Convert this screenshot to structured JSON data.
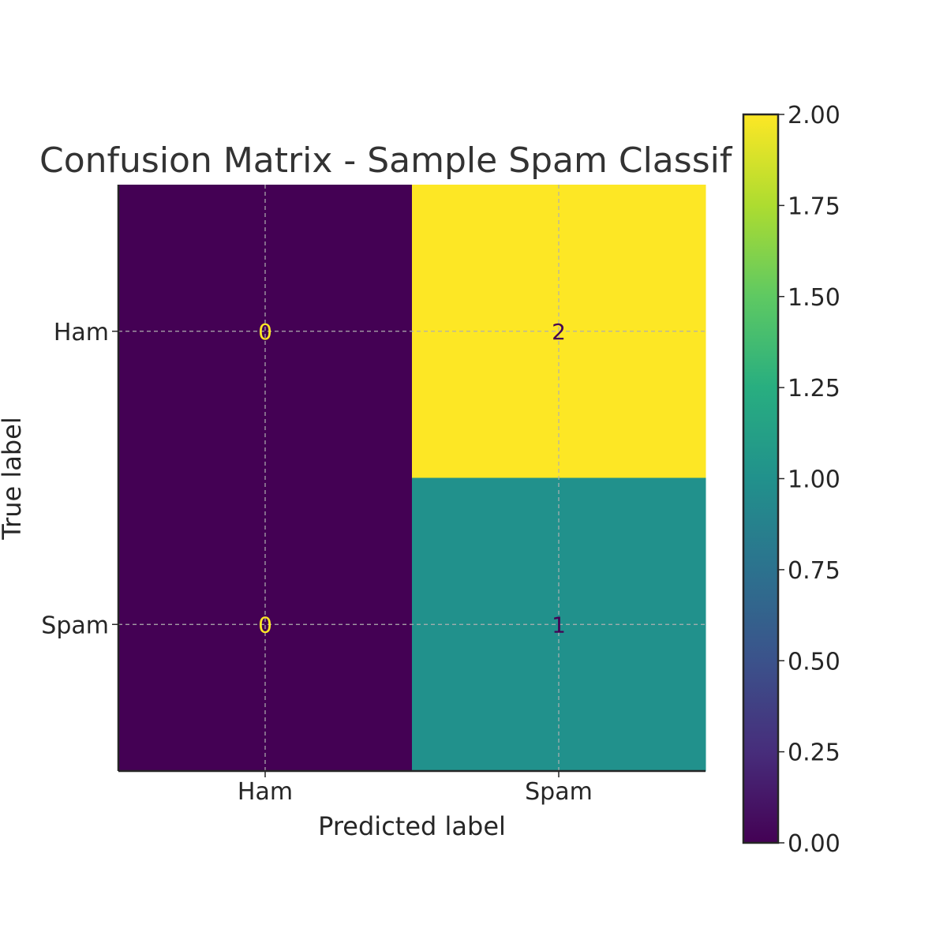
{
  "chart_data": {
    "type": "heatmap",
    "title": "Confusion Matrix - Sample Spam Classif",
    "xlabel": "Predicted label",
    "ylabel": "True label",
    "x_categories": [
      "Ham",
      "Spam"
    ],
    "y_categories": [
      "Ham",
      "Spam"
    ],
    "values": [
      [
        0,
        2
      ],
      [
        0,
        1
      ]
    ],
    "colormap": "viridis",
    "color_range": [
      0,
      2
    ],
    "colorbar_ticks": [
      "0.00",
      "0.25",
      "0.50",
      "0.75",
      "1.00",
      "1.25",
      "1.50",
      "1.75",
      "2.00"
    ],
    "grid": true
  }
}
